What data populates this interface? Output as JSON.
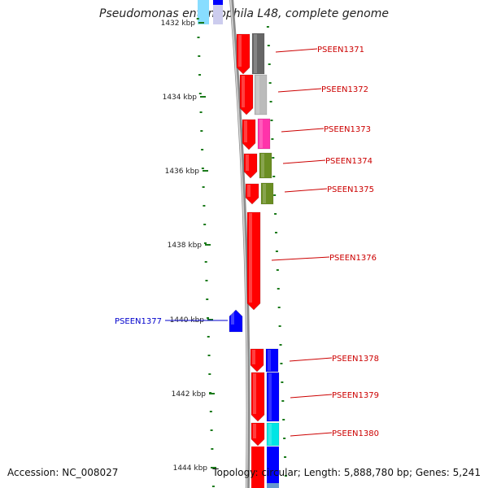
{
  "title": "Pseudomonas entomophila L48, complete genome",
  "footer": {
    "accession": "Accession: NC_008027",
    "topology": "Topology: circular; Length: 5,888,780 bp; Genes: 5,241"
  },
  "ticks": [
    {
      "label": "1432 kbp"
    },
    {
      "label": "1434 kbp"
    },
    {
      "label": "1436 kbp"
    },
    {
      "label": "1438 kbp"
    },
    {
      "label": "1440 kbp"
    },
    {
      "label": "1442 kbp"
    },
    {
      "label": "1444 kbp"
    }
  ],
  "genes": [
    {
      "name": "PSEEN1371",
      "strand": "reverse",
      "color": "#ff0000",
      "partner_color": "#666666"
    },
    {
      "name": "PSEEN1372",
      "strand": "reverse",
      "color": "#ff0000",
      "partner_color": "#bbbbbb"
    },
    {
      "name": "PSEEN1373",
      "strand": "reverse",
      "color": "#ff0000",
      "partner_color": "#ff33aa"
    },
    {
      "name": "PSEEN1374",
      "strand": "reverse",
      "color": "#ff0000",
      "partner_color": "#6b8e23"
    },
    {
      "name": "PSEEN1375",
      "strand": "reverse",
      "color": "#ff0000",
      "partner_color": "#6b8e23"
    },
    {
      "name": "PSEEN1376",
      "strand": "reverse",
      "color": "#ff0000"
    },
    {
      "name": "PSEEN1377",
      "strand": "forward",
      "color": "#0000ff"
    },
    {
      "name": "PSEEN1378",
      "strand": "reverse",
      "color": "#ff0000",
      "partner_color": "#0000ff"
    },
    {
      "name": "PSEEN1379",
      "strand": "reverse",
      "color": "#ff0000",
      "partner_color": "#0000ff"
    },
    {
      "name": "PSEEN1380",
      "strand": "reverse",
      "color": "#ff0000",
      "partner_color": "#00e5e5"
    }
  ],
  "colors": {
    "backbone": "#8c8c8c",
    "tick": "#1a7a1a",
    "label_reverse": "#cc0000",
    "label_forward": "#0000cc"
  }
}
